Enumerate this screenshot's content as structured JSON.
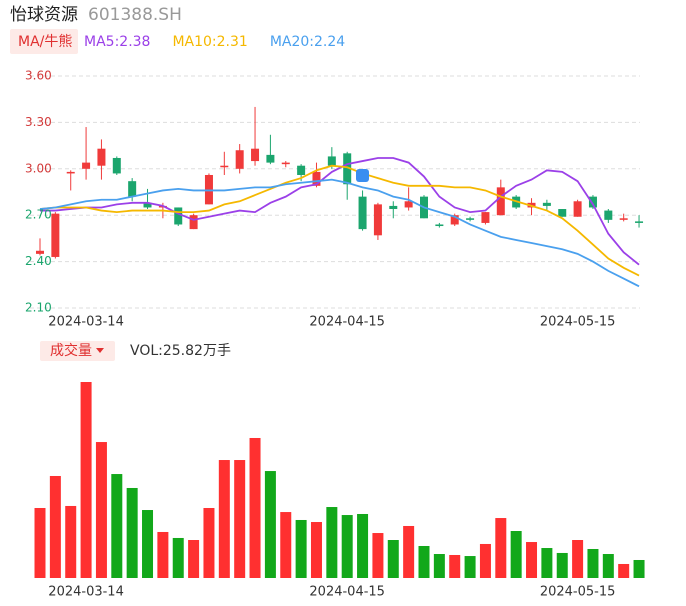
{
  "header": {
    "title": "怡球资源",
    "code": "601388.SH",
    "indicator_button": "MA/牛熊",
    "volume_button": "成交量",
    "volume_label": "VOL:25.82万手"
  },
  "chart_data": [
    {
      "type": "candlestick",
      "categories": [
        null,
        null,
        null,
        "2024-03-14",
        null,
        null,
        null,
        null,
        null,
        null,
        null,
        null,
        null,
        null,
        null,
        null,
        null,
        null,
        null,
        null,
        "2024-04-15",
        null,
        null,
        null,
        null,
        null,
        null,
        null,
        null,
        null,
        null,
        null,
        null,
        null,
        null,
        "2024-05-15",
        null,
        null,
        null,
        null
      ],
      "open": [
        2.45,
        2.43,
        2.97,
        3.0,
        3.02,
        3.07,
        2.92,
        2.78,
        2.75,
        2.75,
        2.61,
        2.77,
        3.01,
        3.0,
        3.05,
        3.09,
        3.03,
        3.02,
        2.89,
        3.08,
        3.1,
        2.82,
        2.57,
        2.76,
        2.75,
        2.82,
        2.64,
        2.64,
        2.68,
        2.65,
        2.7,
        2.82,
        2.75,
        2.78,
        2.74,
        2.69,
        2.82,
        2.73,
        2.67,
        2.66
      ],
      "close": [
        2.47,
        2.71,
        2.98,
        3.04,
        3.13,
        2.97,
        2.82,
        2.75,
        2.76,
        2.64,
        2.7,
        2.96,
        3.02,
        3.12,
        3.13,
        3.04,
        3.04,
        2.96,
        2.98,
        3.02,
        2.9,
        2.61,
        2.77,
        2.74,
        2.79,
        2.68,
        2.63,
        2.7,
        2.67,
        2.72,
        2.88,
        2.75,
        2.78,
        2.76,
        2.69,
        2.79,
        2.75,
        2.67,
        2.68,
        2.65
      ],
      "high": [
        2.55,
        2.72,
        2.99,
        3.27,
        3.19,
        3.08,
        2.94,
        2.87,
        2.78,
        2.75,
        2.71,
        2.97,
        3.11,
        3.16,
        3.4,
        3.22,
        3.05,
        3.03,
        3.04,
        3.14,
        3.11,
        2.86,
        2.78,
        2.79,
        2.88,
        2.83,
        2.65,
        2.71,
        2.69,
        2.72,
        2.93,
        2.83,
        2.81,
        2.8,
        2.74,
        2.8,
        2.83,
        2.74,
        2.71,
        2.7
      ],
      "low": [
        2.44,
        2.42,
        2.86,
        2.93,
        2.93,
        2.96,
        2.79,
        2.74,
        2.68,
        2.63,
        2.61,
        2.77,
        2.96,
        2.97,
        3.02,
        3.03,
        3.01,
        2.92,
        2.88,
        3.0,
        2.8,
        2.6,
        2.54,
        2.68,
        2.73,
        2.68,
        2.62,
        2.63,
        2.66,
        2.64,
        2.7,
        2.74,
        2.7,
        2.73,
        2.69,
        2.69,
        2.74,
        2.65,
        2.66,
        2.62
      ],
      "up_color": "#f03a3a",
      "down_color": "#1ba56d",
      "series": [
        {
          "name": "MA5",
          "legend_label": "MA5:2.38",
          "color": "#9b40e8",
          "values": [
            2.73,
            2.73,
            2.74,
            2.75,
            2.75,
            2.77,
            2.78,
            2.78,
            2.76,
            2.71,
            2.67,
            2.69,
            2.71,
            2.73,
            2.72,
            2.78,
            2.82,
            2.88,
            2.9,
            2.98,
            3.03,
            3.05,
            3.07,
            3.07,
            3.04,
            2.95,
            2.82,
            2.75,
            2.72,
            2.73,
            2.82,
            2.89,
            2.93,
            2.99,
            2.98,
            2.92,
            2.77,
            2.58,
            2.46,
            2.38
          ]
        },
        {
          "name": "MA10",
          "legend_label": "MA10:2.31",
          "color": "#f5b800",
          "values": [
            2.74,
            2.75,
            2.75,
            2.75,
            2.73,
            2.72,
            2.73,
            2.73,
            2.73,
            2.72,
            2.72,
            2.73,
            2.77,
            2.79,
            2.83,
            2.87,
            2.91,
            2.94,
            2.99,
            3.02,
            3.01,
            2.97,
            2.94,
            2.91,
            2.89,
            2.89,
            2.89,
            2.88,
            2.88,
            2.86,
            2.82,
            2.79,
            2.76,
            2.73,
            2.68,
            2.6,
            2.51,
            2.42,
            2.36,
            2.31
          ]
        },
        {
          "name": "MA20",
          "legend_label": "MA20:2.24",
          "color": "#4aa0ee",
          "values": [
            2.74,
            2.75,
            2.77,
            2.79,
            2.8,
            2.8,
            2.82,
            2.84,
            2.86,
            2.87,
            2.86,
            2.86,
            2.86,
            2.87,
            2.88,
            2.88,
            2.9,
            2.91,
            2.92,
            2.93,
            2.91,
            2.88,
            2.86,
            2.82,
            2.8,
            2.75,
            2.72,
            2.69,
            2.64,
            2.6,
            2.56,
            2.54,
            2.52,
            2.5,
            2.48,
            2.45,
            2.4,
            2.34,
            2.29,
            2.24
          ]
        }
      ],
      "ylim": [
        2.1,
        3.6
      ],
      "yticks": [
        {
          "value": 2.1,
          "label": "2.10"
        },
        {
          "value": 2.4,
          "label": "2.40"
        },
        {
          "value": 2.7,
          "label": "2.70"
        },
        {
          "value": 3.0,
          "label": "3.00"
        },
        {
          "value": 3.3,
          "label": "3.30"
        },
        {
          "value": 3.6,
          "label": "3.60"
        }
      ],
      "ytick_colors": [
        "#1ba56d",
        "#1ba56d",
        "#1ba56d",
        "#d23a3a",
        "#d23a3a",
        "#d23a3a"
      ],
      "grid": true
    },
    {
      "type": "bar",
      "categories": [
        null,
        null,
        null,
        "2024-03-14",
        null,
        null,
        null,
        null,
        null,
        null,
        null,
        null,
        null,
        null,
        null,
        null,
        null,
        null,
        null,
        null,
        "2024-04-15",
        null,
        null,
        null,
        null,
        null,
        null,
        null,
        null,
        null,
        null,
        null,
        null,
        null,
        null,
        "2024-05-15",
        null,
        null,
        null,
        null
      ],
      "values": [
        100.4,
        146.3,
        103.3,
        281.1,
        195.0,
        149.1,
        129.1,
        97.5,
        66.0,
        57.4,
        54.5,
        100.4,
        169.2,
        169.2,
        200.8,
        153.4,
        94.6,
        83.2,
        80.3,
        101.8,
        90.3,
        91.8,
        64.5,
        54.5,
        74.6,
        45.9,
        34.4,
        33.0,
        31.5,
        48.8,
        86.0,
        67.4,
        51.6,
        43.0,
        35.9,
        54.5,
        41.6,
        34.4,
        20.1,
        25.82
      ],
      "up_color": "#ff3030",
      "down_color": "#12a81a"
    }
  ]
}
